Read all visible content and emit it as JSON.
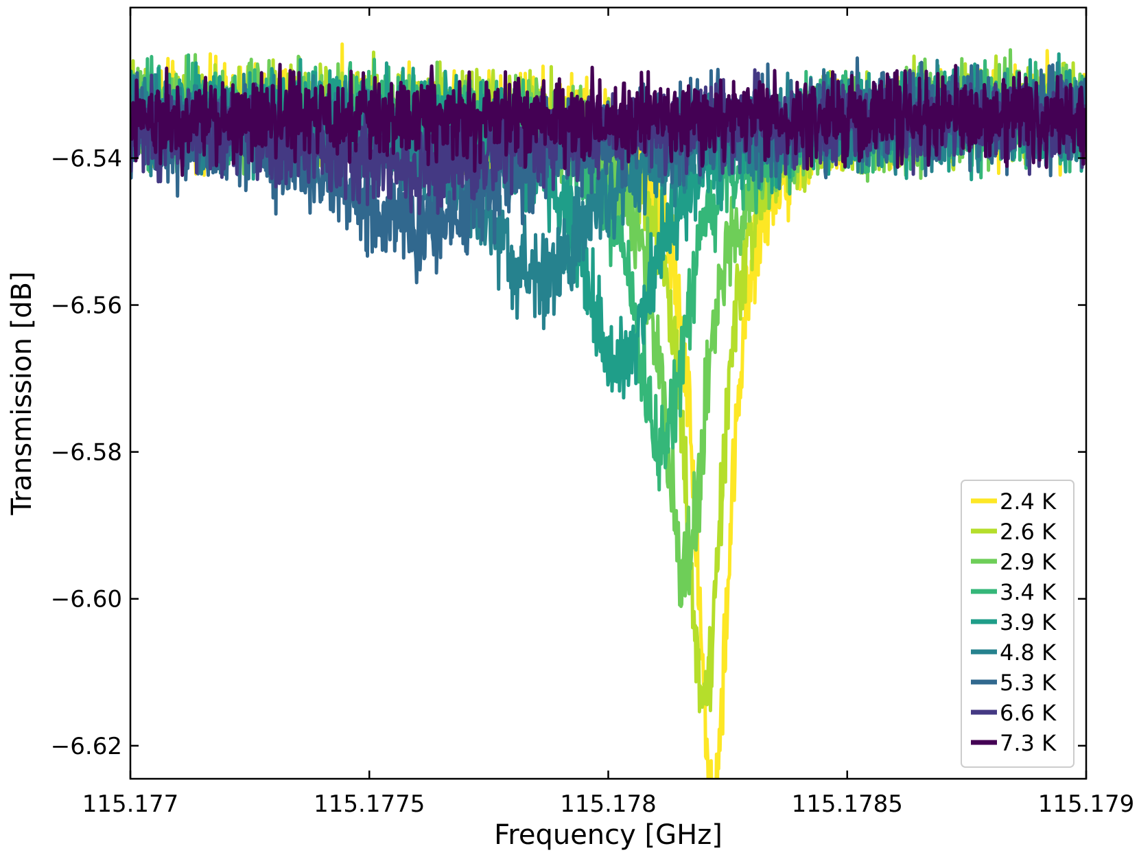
{
  "chart_data": {
    "type": "line",
    "title": "",
    "xlabel": "Frequency [GHz]",
    "ylabel": "Transmission [dB]",
    "xlim": [
      115.177,
      115.179
    ],
    "ylim": [
      -6.6245,
      -6.5195
    ],
    "x_ticks": [
      115.177,
      115.1775,
      115.178,
      115.1785,
      115.179
    ],
    "x_tick_labels": [
      "115.177",
      "115.1775",
      "115.178",
      "115.1785",
      "115.179"
    ],
    "y_ticks": [
      -6.54,
      -6.56,
      -6.58,
      -6.6,
      -6.62
    ],
    "y_tick_labels": [
      "−6.54",
      "−6.56",
      "−6.58",
      "−6.60",
      "−6.62"
    ],
    "grid": false,
    "legend_position": "lower-right",
    "series": [
      {
        "name": "2.4 K",
        "color": "#fde725",
        "center": 115.17822,
        "depth": -0.094,
        "width": 9e-05,
        "baseline": -6.5335,
        "noise": 0.004,
        "order": 0
      },
      {
        "name": "2.6 K",
        "color": "#b5de2b",
        "center": 115.1782,
        "depth": -0.08,
        "width": 0.0001,
        "baseline": -6.5335,
        "noise": 0.004,
        "order": 1
      },
      {
        "name": "2.9 K",
        "color": "#6ece58",
        "center": 115.17816,
        "depth": -0.062,
        "width": 0.00012,
        "baseline": -6.5338,
        "noise": 0.004,
        "order": 2
      },
      {
        "name": "3.4 K",
        "color": "#35b779",
        "center": 115.17811,
        "depth": -0.046,
        "width": 0.00014,
        "baseline": -6.534,
        "noise": 0.004,
        "order": 3
      },
      {
        "name": "3.9 K",
        "color": "#1f9e89",
        "center": 115.17802,
        "depth": -0.035,
        "width": 0.00018,
        "baseline": -6.534,
        "noise": 0.004,
        "order": 4
      },
      {
        "name": "4.8 K",
        "color": "#26828e",
        "center": 115.17785,
        "depth": -0.022,
        "width": 0.00028,
        "baseline": -6.5345,
        "noise": 0.004,
        "order": 5
      },
      {
        "name": "5.3 K",
        "color": "#31688e",
        "center": 115.1776,
        "depth": -0.015,
        "width": 0.0004,
        "baseline": -6.5345,
        "noise": 0.004,
        "order": 6
      },
      {
        "name": "6.6 K",
        "color": "#443983",
        "center": 115.1776,
        "depth": -0.006,
        "width": 0.0005,
        "baseline": -6.535,
        "noise": 0.0035,
        "order": 7
      },
      {
        "name": "7.3 K",
        "color": "#440154",
        "center": 115.1778,
        "depth": 0.0,
        "width": 0.0005,
        "baseline": -6.5345,
        "noise": 0.0035,
        "order": 8
      }
    ]
  }
}
